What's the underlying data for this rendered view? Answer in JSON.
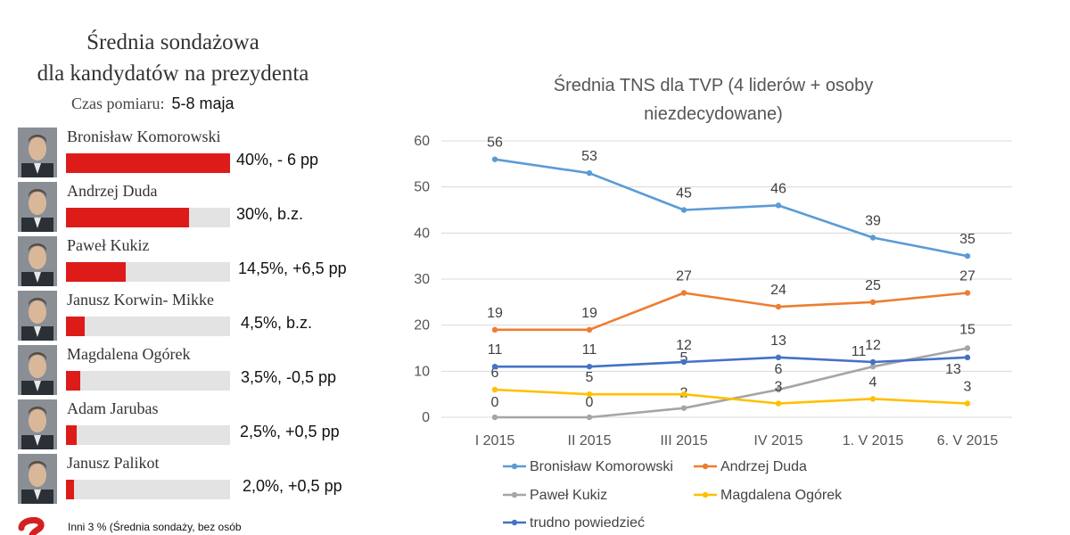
{
  "left_panel": {
    "title_line1": "Średnia sondażowa",
    "title_line2": "dla kandydatów na prezydenta",
    "time_label": "Czas pomiaru:",
    "time_value": "5-8 maja",
    "bar_color": "#dd1c1a",
    "candidates": [
      {
        "name": "Bronisław Komorowski",
        "result": "40%, - 6 pp",
        "percent": 40
      },
      {
        "name": "Andrzej Duda",
        "result": "30%, b.z.",
        "percent": 30
      },
      {
        "name": "Paweł Kukiz",
        "result": "14,5%, +6,5 pp",
        "percent": 14.5
      },
      {
        "name": "Janusz Korwin- Mikke",
        "result": "4,5%, b.z.",
        "percent": 4.5
      },
      {
        "name": "Magdalena Ogórek",
        "result": "3,5%, -0,5 pp",
        "percent": 3.5
      },
      {
        "name": "Adam Jarubas",
        "result": "2,5%, +0,5 pp",
        "percent": 2.5
      },
      {
        "name": "Janusz Palikot",
        "result": "2,0%, +0,5 pp",
        "percent": 2.0
      }
    ],
    "other_note": "Inni 3 %    (Średnia sondaży, bez osób"
  },
  "chart_data": {
    "type": "line",
    "title": "Średnia TNS dla TVP (4 liderów + osoby niezdecydowane)",
    "title_lines": [
      "Średnia TNS dla TVP (4 liderów + osoby",
      "niezdecydowane)"
    ],
    "categories": [
      "I 2015",
      "II 2015",
      "III 2015",
      "IV 2015",
      "1. V 2015",
      "6. V 2015"
    ],
    "ylim": [
      0,
      60
    ],
    "yticks": [
      0,
      10,
      20,
      30,
      40,
      50,
      60
    ],
    "grid": true,
    "legend_position": "bottom",
    "series": [
      {
        "name": "Bronisław Komorowski",
        "values": [
          56,
          53,
          45,
          46,
          39,
          35
        ],
        "color": "#5b9bd5"
      },
      {
        "name": "Andrzej Duda",
        "values": [
          19,
          19,
          27,
          24,
          25,
          27
        ],
        "color": "#ed7d31"
      },
      {
        "name": "Paweł Kukiz",
        "values": [
          0,
          0,
          2,
          6,
          11,
          15
        ],
        "color": "#a5a5a5"
      },
      {
        "name": "Magdalena Ogórek",
        "values": [
          6,
          5,
          5,
          3,
          4,
          3
        ],
        "color": "#ffc000"
      },
      {
        "name": " trudno powiedzieć",
        "values": [
          11,
          11,
          12,
          13,
          12,
          13
        ],
        "color": "#4472c4"
      }
    ]
  }
}
